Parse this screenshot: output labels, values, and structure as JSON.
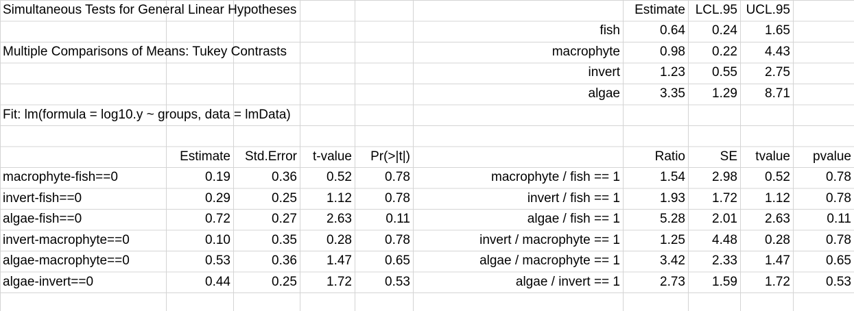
{
  "titles": {
    "line1": "Simultaneous Tests for General Linear Hypotheses",
    "line2": "Multiple Comparisons of Means: Tukey Contrasts",
    "line3": "Fit: lm(formula = log10.y ~ groups, data = lmData)"
  },
  "ci_table": {
    "headers": [
      "Estimate",
      "LCL.95",
      "UCL.95"
    ],
    "rows": [
      {
        "label": "fish",
        "est": "0.64",
        "lcl": "0.24",
        "ucl": "1.65"
      },
      {
        "label": "macrophyte",
        "est": "0.98",
        "lcl": "0.22",
        "ucl": "4.43"
      },
      {
        "label": "invert",
        "est": "1.23",
        "lcl": "0.55",
        "ucl": "2.75"
      },
      {
        "label": "algae",
        "est": "3.35",
        "lcl": "1.29",
        "ucl": "8.71"
      }
    ]
  },
  "tests_table": {
    "headers": [
      "Estimate",
      "Std.Error",
      "t-value",
      "Pr(>|t|)"
    ],
    "rows": [
      {
        "label": "macrophyte-fish==0",
        "est": "0.19",
        "se": "0.36",
        "t": "0.52",
        "p": "0.78"
      },
      {
        "label": "invert-fish==0",
        "est": "0.29",
        "se": "0.25",
        "t": "1.12",
        "p": "0.78"
      },
      {
        "label": "algae-fish==0",
        "est": "0.72",
        "se": "0.27",
        "t": "2.63",
        "p": "0.11"
      },
      {
        "label": "invert-macrophyte==0",
        "est": "0.10",
        "se": "0.35",
        "t": "0.28",
        "p": "0.78"
      },
      {
        "label": "algae-macrophyte==0",
        "est": "0.53",
        "se": "0.36",
        "t": "1.47",
        "p": "0.65"
      },
      {
        "label": "algae-invert==0",
        "est": "0.44",
        "se": "0.25",
        "t": "1.72",
        "p": "0.53"
      }
    ]
  },
  "ratio_table": {
    "headers": [
      "Ratio",
      "SE",
      "tvalue",
      "pvalue"
    ],
    "rows": [
      {
        "label": "macrophyte / fish == 1",
        "ratio": "1.54",
        "se": "2.98",
        "t": "0.52",
        "p": "0.78"
      },
      {
        "label": "invert / fish == 1",
        "ratio": "1.93",
        "se": "1.72",
        "t": "1.12",
        "p": "0.78"
      },
      {
        "label": "algae / fish == 1",
        "ratio": "5.28",
        "se": "2.01",
        "t": "2.63",
        "p": "0.11"
      },
      {
        "label": "invert / macrophyte == 1",
        "ratio": "1.25",
        "se": "4.48",
        "t": "0.28",
        "p": "0.78"
      },
      {
        "label": "algae / macrophyte == 1",
        "ratio": "3.42",
        "se": "2.33",
        "t": "1.47",
        "p": "0.65"
      },
      {
        "label": "algae / invert == 1",
        "ratio": "2.73",
        "se": "1.59",
        "t": "1.72",
        "p": "0.53"
      }
    ]
  }
}
